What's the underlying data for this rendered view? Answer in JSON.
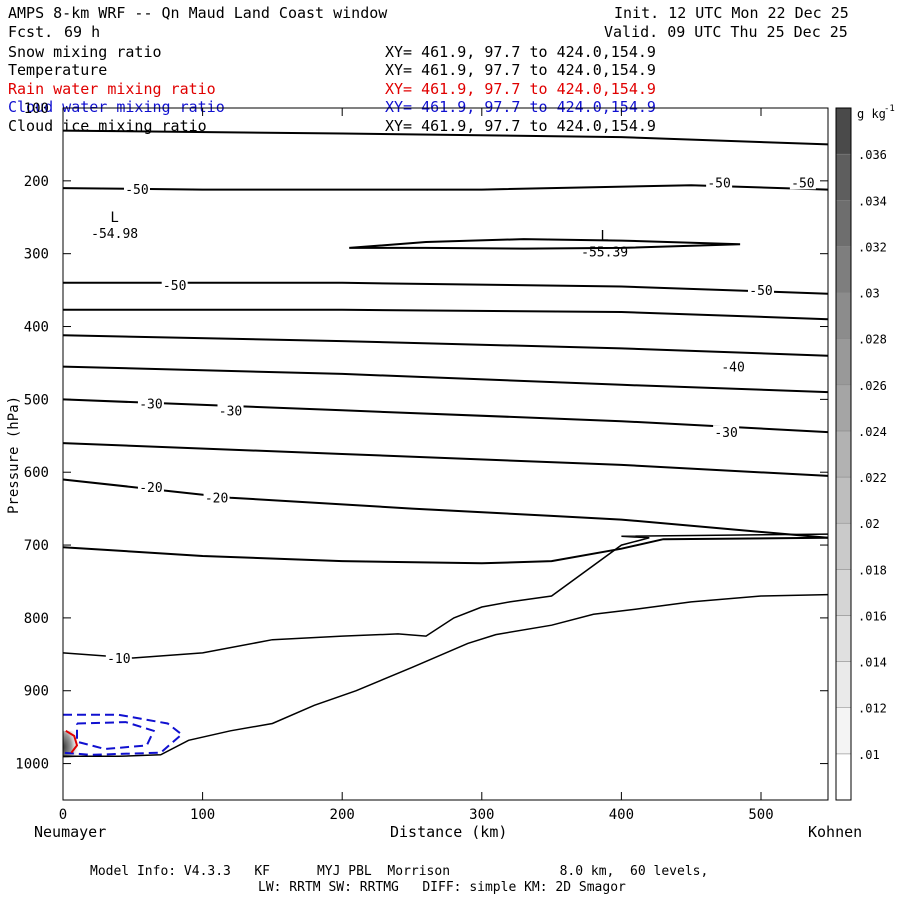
{
  "header": {
    "title": "AMPS 8-km WRF -- Qn Maud Land Coast window",
    "fcst_label": "Fcst.",
    "fcst_value": "69 h",
    "init": "Init. 12 UTC Mon 22 Dec 25",
    "valid": "Valid. 09 UTC Thu 25 Dec 25"
  },
  "fields": [
    {
      "name": "Snow mixing ratio",
      "xy": "XY= 461.9, 97.7 to 424.0,154.9",
      "color": "#000000"
    },
    {
      "name": "Temperature",
      "xy": "XY= 461.9, 97.7 to 424.0,154.9",
      "color": "#000000"
    },
    {
      "name": "Rain water mixing ratio",
      "xy": "XY= 461.9, 97.7 to 424.0,154.9",
      "color": "#e00000"
    },
    {
      "name": "Cloud water mixing ratio",
      "xy": "XY= 461.9, 97.7 to 424.0,154.9",
      "color": "#1010d0"
    },
    {
      "name": "Cloud ice mixing ratio",
      "xy": "XY= 461.9, 97.7 to 424.0,154.9",
      "color": "#000000"
    }
  ],
  "footer": {
    "line1": "Model Info: V4.3.3   KF      MYJ PBL  Morrison              8.0 km,  60 levels,",
    "line2": "LW: RRTM SW: RRTMG   DIFF: simple KM: 2D Smagor"
  },
  "chart_data": {
    "type": "contour",
    "title": "AMPS 8-km WRF -- Qn Maud Land Coast window",
    "xlabel": "Distance (km)",
    "ylabel": "Pressure (hPa)",
    "xlim": [
      0,
      548
    ],
    "ylim": [
      1050,
      100
    ],
    "x_ticks": [
      0,
      100,
      200,
      300,
      400,
      500
    ],
    "y_ticks": [
      100,
      200,
      300,
      400,
      500,
      600,
      700,
      800,
      900,
      1000
    ],
    "x_endpoints": {
      "left": "Neumayer",
      "right": "Kohnen"
    },
    "colorbar": {
      "unit": "g kg",
      "unit_exp": "-1",
      "levels": [
        0.01,
        0.012,
        0.014,
        0.016,
        0.018,
        0.02,
        0.022,
        0.024,
        0.026,
        0.028,
        0.03,
        0.032,
        0.034,
        0.036
      ],
      "level_labels": [
        ".01",
        ".012",
        ".014",
        ".016",
        ".018",
        ".02",
        ".022",
        ".024",
        ".026",
        ".028",
        ".03",
        ".032",
        ".034",
        ".036"
      ],
      "colors": [
        "#ffffff",
        "#f4f4f4",
        "#eaeaea",
        "#e0e0e0",
        "#d5d5d5",
        "#cacaca",
        "#bebebe",
        "#b2b2b2",
        "#a5a5a5",
        "#999999",
        "#8c8c8c",
        "#7e7e7e",
        "#6e6e6e",
        "#5e5e5e",
        "#4a4a4a"
      ]
    },
    "temperature_contours": [
      {
        "points": [
          [
            0,
            131
          ],
          [
            200,
            135
          ],
          [
            400,
            140
          ],
          [
            548,
            150
          ]
        ]
      },
      {
        "label": "-50",
        "label_at": [
          [
            53,
            211
          ],
          [
            470,
            202
          ],
          [
            530,
            202
          ]
        ],
        "points": [
          [
            0,
            210
          ],
          [
            100,
            212
          ],
          [
            300,
            212
          ],
          [
            450,
            206
          ],
          [
            548,
            212
          ]
        ]
      },
      {
        "label": "-50",
        "label_at": [
          [
            80,
            343
          ],
          [
            500,
            350
          ]
        ],
        "points": [
          [
            0,
            340
          ],
          [
            200,
            340
          ],
          [
            400,
            345
          ],
          [
            548,
            355
          ]
        ]
      },
      {
        "points": [
          [
            0,
            377
          ],
          [
            200,
            377
          ],
          [
            400,
            380
          ],
          [
            548,
            390
          ]
        ]
      },
      {
        "label": "-40",
        "label_at": [
          [
            480,
            455
          ]
        ],
        "points": [
          [
            0,
            412
          ],
          [
            200,
            420
          ],
          [
            400,
            430
          ],
          [
            548,
            440
          ]
        ]
      },
      {
        "points": [
          [
            0,
            455
          ],
          [
            200,
            465
          ],
          [
            400,
            480
          ],
          [
            548,
            490
          ]
        ]
      },
      {
        "label": "-30",
        "label_at": [
          [
            63,
            506
          ],
          [
            120,
            515
          ],
          [
            475,
            545
          ]
        ],
        "points": [
          [
            0,
            500
          ],
          [
            200,
            515
          ],
          [
            400,
            530
          ],
          [
            548,
            545
          ]
        ]
      },
      {
        "points": [
          [
            0,
            560
          ],
          [
            200,
            575
          ],
          [
            400,
            590
          ],
          [
            548,
            605
          ]
        ]
      },
      {
        "label": "-20",
        "label_at": [
          [
            63,
            620
          ],
          [
            110,
            635
          ]
        ],
        "points": [
          [
            0,
            610
          ],
          [
            120,
            635
          ],
          [
            250,
            650
          ],
          [
            350,
            660
          ],
          [
            400,
            665
          ],
          [
            548,
            690
          ]
        ]
      }
    ],
    "minima": [
      {
        "label": "L",
        "value": "-54.98",
        "x": 37,
        "p": 265
      },
      {
        "label": "L",
        "value": "-55.39",
        "x": 388,
        "p": 290
      }
    ],
    "cloud_water": {
      "color": "#1010d0",
      "region": {
        "x": [
          0,
          85
        ],
        "p": [
          930,
          990
        ]
      }
    },
    "rain_water": {
      "color": "#e00000",
      "region": {
        "x": [
          0,
          10
        ],
        "p": [
          950,
          985
        ]
      }
    }
  }
}
